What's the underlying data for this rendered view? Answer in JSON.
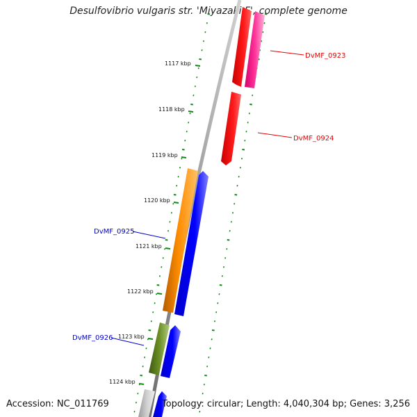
{
  "title": "Desulfovibrio vulgaris str. 'Miyazaki F', complete genome",
  "footer": {
    "accession": "Accession: NC_011769",
    "summary": "Topology: circular; Length: 4,040,304 bp; Genes: 3,256"
  },
  "tick_labels": [
    "1117 kbp",
    "1118 kbp",
    "1119 kbp",
    "1120 kbp",
    "1121 kbp",
    "1122 kbp",
    "1123 kbp",
    "1124 kbp"
  ],
  "gene_labels": [
    {
      "text": "DvMF_0923",
      "color": "#e60000"
    },
    {
      "text": "DvMF_0924",
      "color": "#e60000"
    },
    {
      "text": "DvMF_0925",
      "color": "#0000cc"
    },
    {
      "text": "DvMF_0926",
      "color": "#0000cc"
    }
  ],
  "colors": {
    "backbone": "#8c8c8c",
    "dots": "#118811",
    "red": "#ff0000",
    "magenta": "#ff1493",
    "orange": "#ff8c00",
    "blue": "#0000ff",
    "olive": "#6b8e23",
    "gray": "#c0c0c0"
  }
}
